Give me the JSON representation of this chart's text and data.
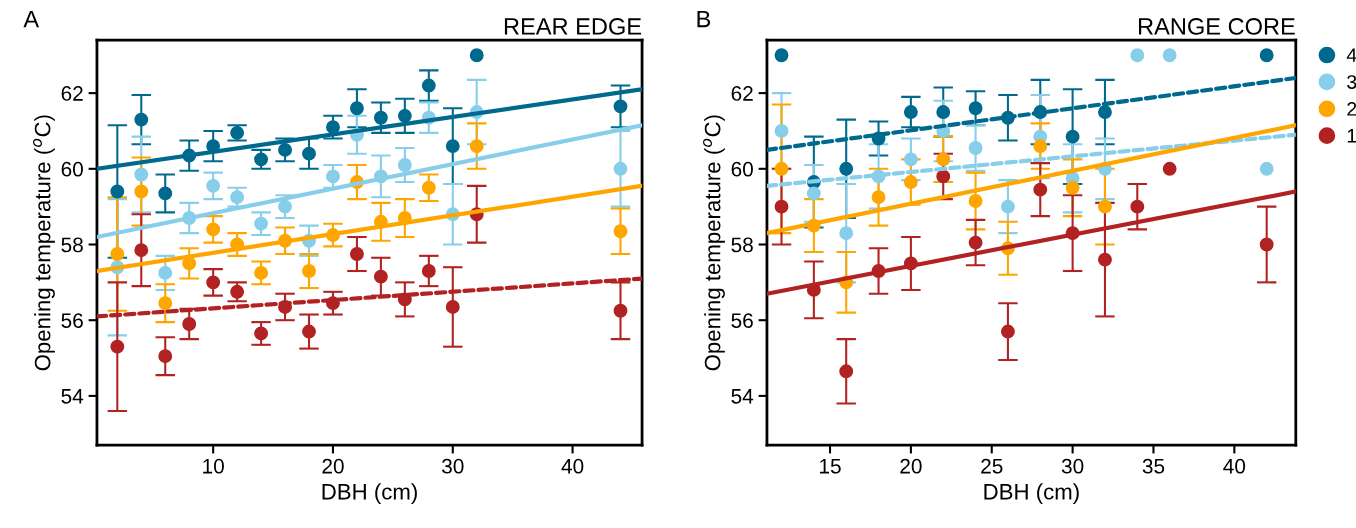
{
  "chart_data": [
    {
      "type": "scatter",
      "title": "REAR EDGE",
      "annotations": [
        "A"
      ],
      "xlabel": "DBH (cm)",
      "ylabel": "Opening temperature ($^{o}$C)",
      "xlim": [
        0.3,
        45.8
      ],
      "xticks": [
        10,
        20,
        30,
        40
      ],
      "ylim": [
        52.7,
        63.4
      ],
      "yticks": [
        54,
        56,
        58,
        60,
        62
      ],
      "grid": false,
      "marker": "circle",
      "series": [
        {
          "color": "#006a8e",
          "x": [
            2,
            4,
            6,
            8,
            10,
            12,
            14,
            16,
            18,
            20,
            22,
            24,
            26,
            28,
            30,
            32,
            44
          ],
          "values": [
            59.4,
            61.3,
            59.35,
            60.35,
            60.6,
            60.95,
            60.25,
            60.5,
            60.4,
            61.1,
            61.6,
            61.35,
            61.4,
            62.2,
            60.6,
            63.0,
            61.65
          ],
          "errors": [
            1.75,
            0.65,
            0.5,
            0.4,
            0.4,
            0.2,
            0.25,
            0.3,
            0.4,
            0.3,
            0.5,
            0.4,
            0.45,
            0.4,
            1.0,
            null,
            0.55
          ]
        },
        {
          "color": "#87ceeb",
          "x": [
            2,
            4,
            6,
            8,
            10,
            12,
            14,
            16,
            18,
            20,
            22,
            24,
            26,
            28,
            30,
            32,
            44
          ],
          "values": [
            57.4,
            59.85,
            57.25,
            58.7,
            59.55,
            59.25,
            58.55,
            59.0,
            58.1,
            59.8,
            60.9,
            59.8,
            60.1,
            61.35,
            58.8,
            61.5,
            60.0
          ],
          "errors": [
            1.8,
            1.0,
            0.45,
            0.4,
            0.35,
            0.25,
            0.3,
            0.3,
            0.4,
            0.3,
            0.5,
            0.55,
            0.45,
            0.4,
            0.8,
            0.85,
            1.0
          ]
        },
        {
          "color": "#ffa500",
          "x": [
            2,
            4,
            6,
            8,
            10,
            12,
            14,
            16,
            18,
            20,
            22,
            24,
            26,
            28,
            32,
            44
          ],
          "values": [
            57.75,
            59.4,
            56.45,
            57.5,
            58.4,
            58.0,
            57.25,
            58.1,
            57.3,
            58.25,
            59.65,
            58.6,
            58.7,
            59.5,
            60.6,
            58.35
          ],
          "errors": [
            1.5,
            0.9,
            0.5,
            0.4,
            0.35,
            0.3,
            0.3,
            0.35,
            0.45,
            0.3,
            0.45,
            0.5,
            0.5,
            0.35,
            0.6,
            0.6
          ]
        },
        {
          "color": "#b22222",
          "x": [
            2,
            4,
            6,
            8,
            10,
            12,
            14,
            16,
            18,
            20,
            22,
            24,
            26,
            28,
            30,
            32,
            44
          ],
          "values": [
            55.3,
            57.85,
            55.05,
            55.9,
            57.0,
            56.75,
            55.65,
            56.35,
            55.7,
            56.45,
            57.75,
            57.15,
            56.55,
            57.3,
            56.35,
            58.8,
            56.25
          ],
          "errors": [
            1.7,
            0.95,
            0.5,
            0.4,
            0.35,
            0.25,
            0.3,
            0.35,
            0.45,
            0.3,
            0.45,
            0.5,
            0.45,
            0.4,
            1.05,
            0.75,
            0.75
          ]
        },
        {
          "type": "line",
          "marker": "none",
          "color": "#006a8e",
          "line_style": "solid",
          "x": [
            0.3,
            45.8
          ],
          "values": [
            60.0,
            62.1
          ]
        },
        {
          "type": "line",
          "marker": "none",
          "color": "#87ceeb",
          "line_style": "solid",
          "x": [
            0.3,
            45.8
          ],
          "values": [
            58.2,
            61.15
          ]
        },
        {
          "type": "line",
          "marker": "none",
          "color": "#ffa500",
          "line_style": "solid",
          "x": [
            0.3,
            45.8
          ],
          "values": [
            57.3,
            59.55
          ]
        },
        {
          "type": "line",
          "marker": "none",
          "color": "#b22222",
          "line_style": "dashed",
          "x": [
            0.3,
            45.8
          ],
          "values": [
            56.1,
            57.1
          ]
        }
      ]
    },
    {
      "type": "scatter",
      "title": "RANGE CORE",
      "annotations": [
        "B"
      ],
      "xlabel": "DBH (cm)",
      "ylabel": "Opening temperature ($^{o}$C)",
      "xlim": [
        11.1,
        43.8
      ],
      "xticks": [
        15,
        20,
        25,
        30,
        35,
        40
      ],
      "ylim": [
        52.7,
        63.4
      ],
      "yticks": [
        54,
        56,
        58,
        60,
        62
      ],
      "grid": false,
      "marker": "circle",
      "legend": "right",
      "series": [
        {
          "name": "4",
          "color": "#006a8e",
          "x": [
            12,
            14,
            16,
            18,
            20,
            22,
            24,
            26,
            28,
            30,
            32,
            42
          ],
          "values": [
            63.0,
            59.65,
            60.0,
            60.8,
            61.5,
            61.5,
            61.6,
            61.35,
            61.5,
            60.85,
            61.5,
            63.0
          ],
          "errors": [
            null,
            1.2,
            1.3,
            0.45,
            0.4,
            0.65,
            0.45,
            0.6,
            0.85,
            1.25,
            0.85,
            null
          ]
        },
        {
          "name": "3",
          "color": "#87ceeb",
          "x": [
            12,
            14,
            16,
            18,
            20,
            22,
            24,
            26,
            28,
            30,
            32,
            34,
            36,
            42
          ],
          "values": [
            61.0,
            59.35,
            58.3,
            59.8,
            60.25,
            61.0,
            60.55,
            59.0,
            60.85,
            59.75,
            60.0,
            63.0,
            63.0,
            60.0
          ],
          "errors": [
            1.0,
            0.75,
            1.3,
            0.85,
            0.55,
            0.8,
            0.6,
            0.7,
            1.1,
            0.9,
            0.8,
            null,
            null,
            null
          ]
        },
        {
          "name": "2",
          "color": "#ffa500",
          "x": [
            12,
            14,
            16,
            18,
            20,
            22,
            24,
            26,
            28,
            30,
            32
          ],
          "values": [
            60.0,
            58.5,
            57.0,
            59.25,
            59.65,
            60.25,
            59.15,
            57.9,
            60.6,
            59.5,
            59.0
          ],
          "errors": [
            1.7,
            0.7,
            0.8,
            0.75,
            0.6,
            0.6,
            0.75,
            0.7,
            0.6,
            0.75,
            1.0
          ]
        },
        {
          "name": "1",
          "color": "#b22222",
          "x": [
            12,
            14,
            16,
            18,
            20,
            22,
            24,
            26,
            28,
            30,
            32,
            34,
            36,
            42
          ],
          "values": [
            59.0,
            56.8,
            54.65,
            57.3,
            57.5,
            59.8,
            58.05,
            55.7,
            59.45,
            58.3,
            57.6,
            59.0,
            60.0,
            58.0
          ],
          "errors": [
            1.0,
            0.75,
            0.85,
            0.6,
            0.7,
            0.6,
            0.6,
            0.75,
            0.7,
            1.0,
            1.5,
            0.6,
            null,
            1.0
          ]
        },
        {
          "type": "line",
          "marker": "none",
          "color": "#006a8e",
          "line_style": "dashed",
          "x": [
            11.1,
            43.8
          ],
          "values": [
            60.5,
            62.4
          ]
        },
        {
          "type": "line",
          "marker": "none",
          "color": "#87ceeb",
          "line_style": "dashed",
          "x": [
            11.1,
            43.8
          ],
          "values": [
            59.55,
            60.9
          ]
        },
        {
          "type": "line",
          "marker": "none",
          "color": "#ffa500",
          "line_style": "solid",
          "x": [
            11.1,
            43.8
          ],
          "values": [
            58.3,
            61.15
          ]
        },
        {
          "type": "line",
          "marker": "none",
          "color": "#b22222",
          "line_style": "solid",
          "x": [
            11.1,
            43.8
          ],
          "values": [
            56.7,
            59.4
          ]
        }
      ]
    }
  ]
}
